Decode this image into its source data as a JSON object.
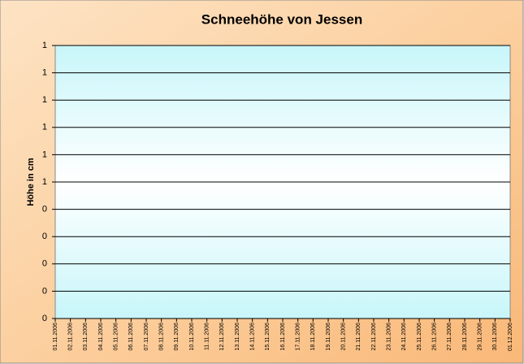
{
  "chart_data": {
    "type": "line",
    "title": "Schneehöhe von Jessen",
    "y_label": "Höhe in cm",
    "categories": [
      "01.11.2006",
      "02.11.2006",
      "03.11.2006",
      "04.11.2006",
      "05.11.2006",
      "06.11.2006",
      "07.11.2006",
      "08.11.2006",
      "09.11.2006",
      "10.11.2006",
      "11.11.2006",
      "12.11.2006",
      "13.11.2006",
      "14.11.2006",
      "15.11.2006",
      "16.11.2006",
      "17.11.2006",
      "18.11.2006",
      "19.11.2006",
      "20.11.2006",
      "21.11.2006",
      "22.11.2006",
      "23.11.2006",
      "24.11.2006",
      "25.11.2006",
      "26.11.2006",
      "27.11.2006",
      "28.11.2006",
      "29.11.2006",
      "30.11.2006",
      "01.12.2006"
    ],
    "values": [
      null,
      null,
      null,
      null,
      null,
      null,
      null,
      null,
      null,
      null,
      null,
      null,
      null,
      null,
      null,
      null,
      null,
      null,
      null,
      null,
      null,
      null,
      null,
      null,
      null,
      null,
      null,
      null,
      null,
      null,
      null
    ],
    "color": "#000080",
    "ylim": [
      0,
      1
    ],
    "yticks": [
      0,
      {
        "value": 0.1,
        "label": "0"
      },
      {
        "value": 0.2,
        "label": "0"
      },
      {
        "value": 0.3,
        "label": "0"
      },
      {
        "value": 0.4,
        "label": "0"
      },
      {
        "value": 0.5,
        "label": "1"
      },
      {
        "value": 0.6,
        "label": "1"
      },
      {
        "value": 0.7,
        "label": "1"
      },
      {
        "value": 0.8,
        "label": "1"
      },
      {
        "value": 0.9,
        "label": "1"
      },
      1
    ],
    "grid": true
  }
}
